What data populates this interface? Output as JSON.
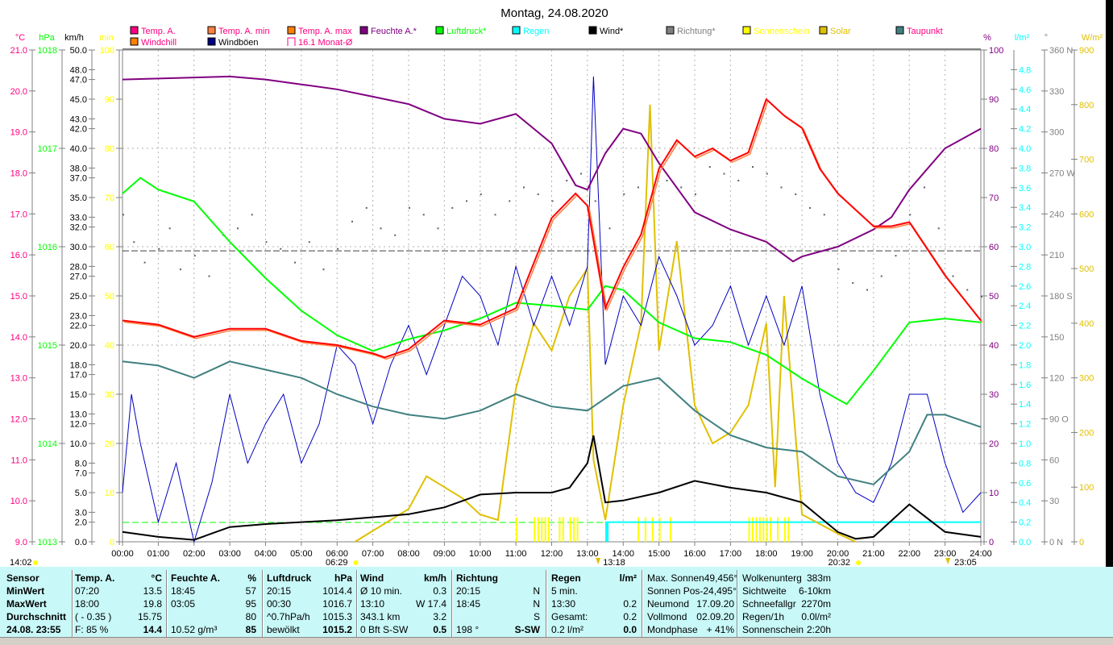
{
  "title": "Montag, 24.08.2020",
  "legend": [
    {
      "label": "Temp. A.",
      "swatch": "#ff0080",
      "text": "#ff0080",
      "row": 0
    },
    {
      "label": "Temp. A. min",
      "swatch": "#ff8040",
      "text": "#ff0080",
      "row": 0
    },
    {
      "label": "Temp. A. max",
      "swatch": "#ff8000",
      "text": "#ff0080",
      "row": 0
    },
    {
      "label": "Feuchte A.*",
      "swatch": "#800080",
      "text": "#800080",
      "row": 0
    },
    {
      "label": "Luftdruck*",
      "swatch": "#00ff00",
      "text": "#00ff00",
      "row": 0
    },
    {
      "label": "Regen",
      "swatch": "#00ffff",
      "text": "#00ffff",
      "row": 0
    },
    {
      "label": "Wind*",
      "swatch": "#000000",
      "text": "#000000",
      "row": 0
    },
    {
      "label": "Richtung*",
      "swatch": "#808080",
      "text": "#808080",
      "row": 0
    },
    {
      "label": "Sonnenschein",
      "swatch": "#ffff00",
      "text": "#ffff00",
      "row": 0
    },
    {
      "label": "Solar",
      "swatch": "#e0c000",
      "text": "#e0c000",
      "row": 0
    },
    {
      "label": "Taupunkt",
      "swatch": "#408080",
      "text": "#ff0080",
      "row": 0
    },
    {
      "label": "Windchill",
      "swatch": "#ff8000",
      "text": "#ff0080",
      "row": 1
    },
    {
      "label": "Windböen",
      "swatch": "#000080",
      "text": "#000000",
      "row": 1
    },
    {
      "label": "16.1 Monat-Ø",
      "swatch": "outline",
      "text": "#ff0080",
      "row": 1
    }
  ],
  "axes": {
    "temp": {
      "unit": "°C",
      "color": "#ff0080",
      "range": [
        9,
        21
      ],
      "ticks": [
        "21.0",
        "20.0",
        "19.0",
        "18.0",
        "17.0",
        "16.0",
        "15.0",
        "14.0",
        "13.0",
        "12.0",
        "11.0",
        "10.0",
        "9.0"
      ]
    },
    "pressure": {
      "unit": "hPa",
      "color": "#00ff00",
      "range": [
        1013,
        1018
      ],
      "ticks": [
        "1018",
        "1017",
        "1016",
        "1015",
        "1014",
        "1013"
      ]
    },
    "wind": {
      "unit": "km/h",
      "color": "#000000",
      "range": [
        0,
        50
      ],
      "ticks": [
        "50.0",
        "48.0",
        "47.0",
        "45.0",
        "43.0",
        "42.0",
        "40.0",
        "38.0",
        "37.0",
        "35.0",
        "33.0",
        "32.0",
        "30.0",
        "28.0",
        "27.0",
        "25.0",
        "23.0",
        "22.0",
        "20.0",
        "18.0",
        "17.0",
        "15.0",
        "13.0",
        "12.0",
        "10.0",
        "8.0",
        "7.0",
        "5.0",
        "3.0",
        "2.0",
        "0.0"
      ]
    },
    "sunshine": {
      "unit": "min",
      "color": "#ffff00",
      "range": [
        0,
        100
      ],
      "ticks": [
        "100",
        "90",
        "80",
        "70",
        "60",
        "50",
        "40",
        "30",
        "20",
        "10",
        "0"
      ]
    },
    "humidity": {
      "unit": "%",
      "color": "#800080",
      "range": [
        0,
        100
      ],
      "ticks": [
        "100",
        "90",
        "80",
        "70",
        "60",
        "50",
        "40",
        "30",
        "20",
        "10",
        "0"
      ]
    },
    "rain": {
      "unit": "l/m²",
      "color": "#00ffff",
      "range": [
        0,
        5
      ],
      "ticks": [
        "4.8",
        "4.6",
        "4.4",
        "4.2",
        "4.0",
        "3.8",
        "3.6",
        "3.4",
        "3.2",
        "3.0",
        "2.8",
        "2.6",
        "2.4",
        "2.2",
        "2.0",
        "1.8",
        "1.6",
        "1.4",
        "1.2",
        "1.0",
        "0.8",
        "0.6",
        "0.4",
        "0.2",
        "0.0"
      ]
    },
    "direction": {
      "unit": "°",
      "color": "#808080",
      "range": [
        0,
        360
      ],
      "ticks": [
        "360 N",
        "330",
        "300",
        "270 W",
        "240",
        "210",
        "180 S",
        "150",
        "120",
        "90  O",
        "60",
        "30",
        "0   N"
      ]
    },
    "solar": {
      "unit": "W/m²",
      "color": "#e0c000",
      "range": [
        0,
        900
      ],
      "ticks": [
        "900",
        "800",
        "700",
        "600",
        "500",
        "400",
        "300",
        "200",
        "100",
        "0"
      ]
    }
  },
  "x_ticks": [
    "00:00",
    "01:00",
    "02:00",
    "03:00",
    "04:00",
    "05:00",
    "06:00",
    "07:00",
    "08:00",
    "09:00",
    "10:00",
    "11:00",
    "12:00",
    "13:00",
    "14:00",
    "15:00",
    "16:00",
    "17:00",
    "18:00",
    "19:00",
    "20:00",
    "21:00",
    "22:00",
    "23:00",
    "24:00"
  ],
  "sun_moon": {
    "moonset_prev": "14:02",
    "sunrise": "06:29",
    "moonrise": "13:18",
    "sunset": "20:32",
    "moonset": "23:05"
  },
  "chart_data": {
    "type": "line",
    "title": "Montag, 24.08.2020",
    "x_unit": "hour",
    "month_avg_temp": 16.1,
    "series": [
      {
        "name": "Temp. A.",
        "axis": "temp",
        "color": "#ff0000",
        "x": [
          0,
          1,
          2,
          3,
          4,
          5,
          6,
          7,
          7.33,
          8,
          9,
          10,
          11,
          12,
          12.67,
          13,
          13.5,
          14,
          14.5,
          15,
          15.5,
          16,
          16.5,
          17,
          17.5,
          18,
          18.5,
          19,
          19.5,
          20,
          21,
          21.5,
          22,
          23,
          24
        ],
        "y": [
          14.4,
          14.3,
          14.0,
          14.2,
          14.2,
          13.9,
          13.8,
          13.6,
          13.5,
          13.7,
          14.4,
          14.3,
          14.7,
          16.9,
          17.5,
          17.2,
          14.7,
          15.7,
          16.5,
          18.1,
          18.8,
          18.4,
          18.6,
          18.3,
          18.5,
          19.8,
          19.4,
          19.1,
          18.1,
          17.5,
          16.7,
          16.7,
          16.8,
          15.5,
          14.4
        ]
      },
      {
        "name": "Feuchte A.",
        "axis": "humidity",
        "color": "#800080",
        "x": [
          0,
          3,
          4,
          5,
          6,
          7,
          8,
          9,
          10,
          11,
          12,
          12.67,
          13,
          13.5,
          14,
          14.5,
          15,
          16,
          17,
          18,
          18.75,
          19,
          20,
          21,
          21.5,
          22,
          23,
          24
        ],
        "y": [
          94,
          94.6,
          94,
          93,
          92,
          90.5,
          89,
          86,
          85,
          87,
          81,
          72.5,
          71.6,
          79,
          84,
          83,
          77,
          67,
          63.5,
          61,
          57,
          58,
          60,
          63.5,
          66,
          71.6,
          80,
          84
        ]
      },
      {
        "name": "Luftdruck",
        "axis": "pressure",
        "color": "#00ff00",
        "x": [
          0,
          0.5,
          1,
          2,
          3,
          4,
          5,
          6,
          7,
          8,
          9,
          10,
          11,
          12,
          13,
          13.5,
          14,
          15,
          16,
          17,
          18,
          19,
          20,
          20.25,
          21,
          22,
          23,
          24
        ],
        "y": [
          1016.54,
          1016.7,
          1016.58,
          1016.46,
          1016.05,
          1015.68,
          1015.35,
          1015.1,
          1014.94,
          1015.06,
          1015.15,
          1015.27,
          1015.43,
          1015.4,
          1015.36,
          1015.6,
          1015.56,
          1015.23,
          1015.07,
          1015.03,
          1014.9,
          1014.66,
          1014.45,
          1014.4,
          1014.74,
          1015.23,
          1015.27,
          1015.23
        ]
      },
      {
        "name": "Taupunkt",
        "axis": "temp",
        "color": "#408080",
        "x": [
          0,
          1,
          2,
          3,
          4,
          5,
          6,
          7,
          8,
          9,
          10,
          11,
          12,
          13,
          14,
          15,
          16,
          17,
          18,
          19,
          20,
          21,
          22,
          22.5,
          23,
          24
        ],
        "y": [
          13.4,
          13.3,
          13.0,
          13.4,
          13.2,
          13.0,
          12.6,
          12.3,
          12.1,
          12.0,
          12.2,
          12.6,
          12.3,
          12.2,
          12.8,
          13.0,
          12.2,
          11.6,
          11.3,
          11.2,
          10.6,
          10.4,
          11.2,
          12.1,
          12.1,
          11.8
        ]
      },
      {
        "name": "Wind",
        "axis": "wind",
        "color": "#000000",
        "x": [
          0,
          1,
          2,
          3,
          4,
          5,
          6,
          7,
          8,
          9,
          10,
          11,
          12,
          12.5,
          13,
          13.17,
          13.5,
          14,
          15,
          16,
          17,
          18,
          19,
          20,
          20.5,
          21,
          22,
          23,
          24
        ],
        "y": [
          1.0,
          0.5,
          0.2,
          1.5,
          1.8,
          2.0,
          2.2,
          2.5,
          2.8,
          3.5,
          4.8,
          5.0,
          5.0,
          5.5,
          8.0,
          10.8,
          4.0,
          4.2,
          5.0,
          6.2,
          5.5,
          5.0,
          4.0,
          1.0,
          0.3,
          0.5,
          3.8,
          1.0,
          0.5
        ]
      },
      {
        "name": "Windböen",
        "axis": "wind",
        "color": "#0000c0",
        "x": [
          0,
          0.25,
          0.5,
          1,
          1.5,
          2,
          2.5,
          3,
          3.5,
          4,
          4.5,
          5,
          5.5,
          6,
          6.5,
          7,
          7.5,
          8,
          8.5,
          9,
          9.5,
          10,
          10.5,
          11,
          11.5,
          12,
          12.5,
          13,
          13.17,
          13.5,
          14,
          14.5,
          15,
          15.5,
          16,
          16.5,
          17,
          17.5,
          18,
          18.5,
          19,
          19.5,
          20,
          20.5,
          21,
          21.5,
          22,
          22.5,
          23,
          23.5,
          24
        ],
        "y": [
          5,
          15,
          10,
          2,
          8,
          0,
          6,
          15,
          8,
          12,
          15,
          8,
          12,
          20,
          18,
          12,
          18,
          22,
          17,
          22,
          27,
          25,
          20,
          28,
          22,
          27,
          22,
          28,
          47.3,
          18,
          25,
          22,
          29,
          25,
          20,
          22,
          26,
          20,
          25,
          20,
          26,
          15,
          8,
          5,
          4,
          8,
          15,
          15,
          8,
          3,
          5
        ]
      },
      {
        "name": "Solar",
        "axis": "solar",
        "color": "#e0c000",
        "x": [
          6.5,
          7,
          8,
          8.5,
          9,
          9.5,
          10,
          10.5,
          11,
          11.5,
          12,
          12.5,
          13,
          13.17,
          13.5,
          14,
          14.5,
          14.75,
          15,
          15.5,
          16,
          16.5,
          17,
          17.5,
          18,
          18.25,
          18.5,
          19,
          20,
          20.5
        ],
        "y": [
          0,
          20,
          60,
          120,
          100,
          80,
          50,
          40,
          280,
          400,
          350,
          450,
          500,
          150,
          40,
          250,
          400,
          800,
          350,
          550,
          250,
          180,
          200,
          250,
          400,
          100,
          450,
          50,
          15,
          0
        ]
      }
    ],
    "sunshine_bars": {
      "axis": "sunshine",
      "color": "#ffff00",
      "value": 5,
      "x": [
        11.0,
        11.5,
        11.6,
        11.7,
        11.8,
        11.9,
        12.2,
        12.3,
        12.5,
        12.6,
        12.7,
        14.4,
        14.6,
        14.8,
        15.0,
        15.3,
        17.5,
        17.6,
        17.7,
        17.8,
        17.9,
        18.0,
        18.1,
        18.3,
        18.5,
        18.6
      ]
    },
    "rain": {
      "axis": "rain",
      "color": "#00ffff",
      "bar_x": 13.5,
      "bar_value": 0.2,
      "cumulative_from": 13.5,
      "cumulative_value": 0.2
    },
    "direction_dots": {
      "axis": "direction",
      "color": "#606060",
      "x": [
        0,
        0.3,
        0.6,
        1,
        1.3,
        1.6,
        2,
        2.4,
        2.8,
        3.2,
        3.6,
        4,
        4.4,
        4.8,
        5.2,
        5.6,
        6,
        6.4,
        6.8,
        7.2,
        7.6,
        8,
        8.4,
        8.8,
        9.2,
        9.6,
        10,
        10.4,
        10.8,
        11.2,
        11.6,
        12,
        12.4,
        12.8,
        13.2,
        13.6,
        14,
        14.4,
        14.8,
        15.2,
        15.6,
        16,
        16.4,
        16.8,
        17.2,
        17.6,
        18,
        18.4,
        18.8,
        19.2,
        19.6,
        20,
        20.4,
        20.8,
        21.2,
        21.6,
        22,
        22.4,
        22.8,
        23.2,
        23.6,
        24
      ],
      "y": [
        240,
        220,
        205,
        215,
        230,
        200,
        210,
        195,
        225,
        230,
        240,
        220,
        215,
        205,
        220,
        200,
        215,
        235,
        245,
        230,
        225,
        245,
        240,
        230,
        245,
        250,
        255,
        240,
        250,
        260,
        255,
        250,
        265,
        270,
        250,
        230,
        255,
        260,
        250,
        265,
        260,
        255,
        275,
        270,
        265,
        275,
        270,
        260,
        255,
        245,
        240,
        200,
        190,
        185,
        195,
        210,
        240,
        260,
        230,
        195,
        185,
        180
      ]
    }
  },
  "stats": {
    "sensor": {
      "header": "Sensor",
      "rows": [
        "MinWert",
        "MaxWert",
        "Durchschnitt",
        "24.08. 23:55"
      ]
    },
    "temp": {
      "header": "Temp. A.",
      "unit": "°C",
      "rows": [
        [
          "07:20",
          "13.5"
        ],
        [
          "18:00",
          "19.8"
        ],
        [
          "( - 0.35 )",
          "15.75"
        ],
        [
          "F: 85 %",
          "14.4"
        ]
      ]
    },
    "humidity": {
      "header": "Feuchte A.",
      "unit": "%",
      "rows": [
        [
          "18:45",
          "57"
        ],
        [
          "03:05",
          "95"
        ],
        [
          "",
          "80"
        ],
        [
          "10.52 g/m³",
          "85"
        ]
      ]
    },
    "pressure": {
      "header": "Luftdruck",
      "unit": "hPa",
      "rows": [
        [
          "20:15",
          "1014.4"
        ],
        [
          "00:30",
          "1016.7"
        ],
        [
          "^0.7hPa/h",
          "1015.3"
        ],
        [
          "bewölkt",
          "1015.2"
        ]
      ]
    },
    "wind": {
      "header": "Wind",
      "unit": "km/h",
      "rows": [
        [
          "Ø 10 min.",
          "0.3"
        ],
        [
          "13:10",
          "W 17.4"
        ],
        [
          "343.1 km",
          "3.2"
        ],
        [
          "0 Bft S-SW",
          "0.5"
        ]
      ]
    },
    "direction": {
      "header": "Richtung",
      "unit": "",
      "rows": [
        [
          "20:15",
          "N"
        ],
        [
          "18:45",
          "N"
        ],
        [
          "",
          "S"
        ],
        [
          "198 °",
          "S-SW"
        ]
      ]
    },
    "rain": {
      "header": "Regen",
      "unit": "l/m²",
      "rows": [
        [
          "5 min.",
          ""
        ],
        [
          "13:30",
          "0.2"
        ],
        [
          "Gesamt:",
          "0.2"
        ],
        [
          "0.2 l/m²",
          "0.0"
        ]
      ]
    },
    "astro": {
      "rows": [
        [
          "Max. Sonnen",
          "49,456°"
        ],
        [
          "Sonnen Pos",
          "-24,495°"
        ],
        [
          "Neumond",
          "17.09.20"
        ],
        [
          "Vollmond",
          "02.09.20"
        ],
        [
          "Mondphase",
          "+ 41%"
        ]
      ]
    },
    "misc": {
      "rows": [
        [
          "Wolkenunterg",
          "383m"
        ],
        [
          "Sichtweite",
          "6-10km"
        ],
        [
          "Schneefallgr",
          "2270m"
        ],
        [
          "Regen/1h",
          "0.0l/m²"
        ],
        [
          "Sonnenschein",
          "2:20h"
        ]
      ]
    }
  }
}
